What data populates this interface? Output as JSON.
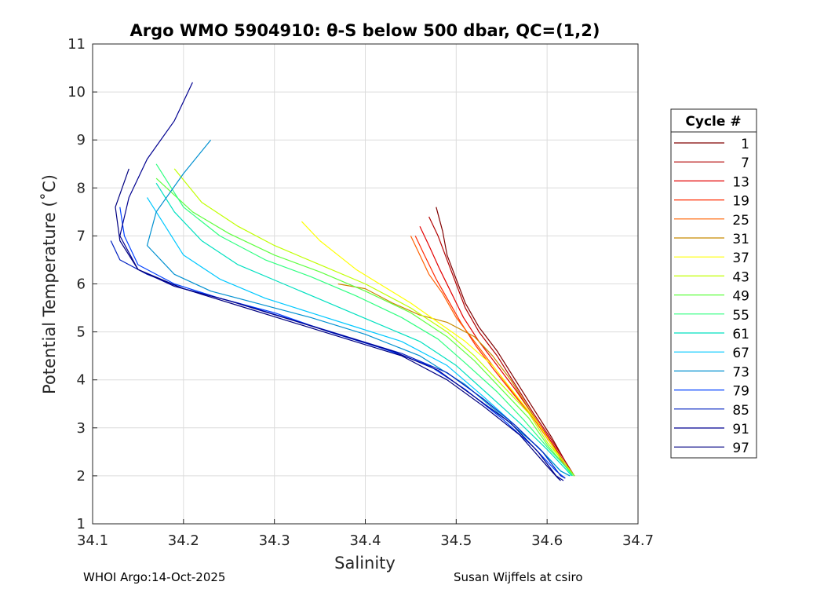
{
  "chart_data": {
    "type": "line",
    "title": "Argo WMO 5904910: θ-S below 500 dbar,  QC=(1,2)",
    "xlabel": "Salinity",
    "ylabel": "Potential Temperature (˚C)",
    "xlim": [
      34.1,
      34.7
    ],
    "ylim": [
      1,
      11
    ],
    "xticks": [
      "34.1",
      "34.2",
      "34.3",
      "34.4",
      "34.5",
      "34.6",
      "34.7"
    ],
    "yticks": [
      "1",
      "2",
      "3",
      "4",
      "5",
      "6",
      "7",
      "8",
      "9",
      "10",
      "11"
    ],
    "grid": true,
    "legend": {
      "title": "Cycle #",
      "placement": "outside-right",
      "entries": [
        "1",
        "7",
        "13",
        "19",
        "25",
        "31",
        "37",
        "43",
        "49",
        "55",
        "61",
        "67",
        "73",
        "79",
        "85",
        "91",
        "97"
      ],
      "colors": [
        "#800000",
        "#b20000",
        "#e30000",
        "#ff2a00",
        "#ff6000",
        "#c88a00",
        "#ffff00",
        "#c0ff00",
        "#60ff40",
        "#30ff80",
        "#00e0c0",
        "#00c8ff",
        "#0090d0",
        "#0040ff",
        "#0020c0",
        "#000090",
        "#000080"
      ]
    },
    "series": [
      {
        "name": "1",
        "color": "#800000",
        "values": [
          [
            34.478,
            7.6
          ],
          [
            34.485,
            7.1
          ],
          [
            34.49,
            6.6
          ],
          [
            34.5,
            6.1
          ],
          [
            34.51,
            5.6
          ],
          [
            34.525,
            5.1
          ],
          [
            34.545,
            4.6
          ],
          [
            34.565,
            4.0
          ],
          [
            34.585,
            3.4
          ],
          [
            34.605,
            2.8
          ],
          [
            34.62,
            2.3
          ],
          [
            34.63,
            2.0
          ]
        ]
      },
      {
        "name": "7",
        "color": "#b20000",
        "values": [
          [
            34.47,
            7.4
          ],
          [
            34.48,
            7.0
          ],
          [
            34.49,
            6.5
          ],
          [
            34.5,
            6.0
          ],
          [
            34.51,
            5.5
          ],
          [
            34.525,
            5.0
          ],
          [
            34.545,
            4.5
          ],
          [
            34.565,
            3.9
          ],
          [
            34.585,
            3.3
          ],
          [
            34.605,
            2.75
          ],
          [
            34.62,
            2.3
          ],
          [
            34.63,
            2.0
          ]
        ]
      },
      {
        "name": "13",
        "color": "#e30000",
        "values": [
          [
            34.46,
            7.2
          ],
          [
            34.47,
            6.8
          ],
          [
            34.482,
            6.3
          ],
          [
            34.495,
            5.8
          ],
          [
            34.508,
            5.3
          ],
          [
            34.525,
            4.8
          ],
          [
            34.545,
            4.3
          ],
          [
            34.565,
            3.8
          ],
          [
            34.585,
            3.25
          ],
          [
            34.605,
            2.7
          ],
          [
            34.62,
            2.25
          ],
          [
            34.63,
            2.0
          ]
        ]
      },
      {
        "name": "19",
        "color": "#ff2a00",
        "values": [
          [
            34.455,
            7.0
          ],
          [
            34.465,
            6.6
          ],
          [
            34.478,
            6.1
          ],
          [
            34.49,
            5.7
          ],
          [
            34.505,
            5.2
          ],
          [
            34.522,
            4.7
          ],
          [
            34.542,
            4.2
          ],
          [
            34.563,
            3.7
          ],
          [
            34.585,
            3.2
          ],
          [
            34.605,
            2.65
          ],
          [
            34.62,
            2.2
          ],
          [
            34.63,
            2.0
          ]
        ]
      },
      {
        "name": "25",
        "color": "#ff6000",
        "values": [
          [
            34.45,
            7.0
          ],
          [
            34.46,
            6.6
          ],
          [
            34.47,
            6.2
          ],
          [
            34.485,
            5.8
          ],
          [
            34.5,
            5.3
          ],
          [
            34.52,
            4.8
          ],
          [
            34.54,
            4.3
          ],
          [
            34.56,
            3.8
          ],
          [
            34.583,
            3.25
          ],
          [
            34.603,
            2.7
          ],
          [
            34.618,
            2.25
          ],
          [
            34.63,
            2.0
          ]
        ]
      },
      {
        "name": "31",
        "color": "#c88a00",
        "values": [
          [
            34.37,
            6.0
          ],
          [
            34.4,
            5.9
          ],
          [
            34.43,
            5.6
          ],
          [
            34.46,
            5.35
          ],
          [
            34.49,
            5.2
          ],
          [
            34.52,
            4.9
          ],
          [
            34.54,
            4.5
          ],
          [
            34.56,
            4.0
          ],
          [
            34.58,
            3.4
          ],
          [
            34.6,
            2.8
          ],
          [
            34.62,
            2.25
          ],
          [
            34.63,
            2.0
          ]
        ]
      },
      {
        "name": "37",
        "color": "#ffff00",
        "values": [
          [
            34.33,
            7.3
          ],
          [
            34.35,
            6.9
          ],
          [
            34.37,
            6.6
          ],
          [
            34.39,
            6.3
          ],
          [
            34.42,
            5.95
          ],
          [
            34.45,
            5.6
          ],
          [
            34.48,
            5.2
          ],
          [
            34.51,
            4.8
          ],
          [
            34.54,
            4.3
          ],
          [
            34.565,
            3.7
          ],
          [
            34.59,
            3.1
          ],
          [
            34.61,
            2.5
          ],
          [
            34.63,
            2.0
          ]
        ]
      },
      {
        "name": "43",
        "color": "#c0ff00",
        "values": [
          [
            34.19,
            8.4
          ],
          [
            34.22,
            7.7
          ],
          [
            34.26,
            7.2
          ],
          [
            34.3,
            6.8
          ],
          [
            34.35,
            6.4
          ],
          [
            34.4,
            6.0
          ],
          [
            34.45,
            5.5
          ],
          [
            34.49,
            5.0
          ],
          [
            34.52,
            4.5
          ],
          [
            34.55,
            3.9
          ],
          [
            34.58,
            3.3
          ],
          [
            34.6,
            2.7
          ],
          [
            34.62,
            2.25
          ],
          [
            34.63,
            2.0
          ]
        ]
      },
      {
        "name": "49",
        "color": "#60ff40",
        "values": [
          [
            34.17,
            8.2
          ],
          [
            34.21,
            7.5
          ],
          [
            34.25,
            7.05
          ],
          [
            34.3,
            6.6
          ],
          [
            34.35,
            6.25
          ],
          [
            34.4,
            5.85
          ],
          [
            34.45,
            5.4
          ],
          [
            34.49,
            4.9
          ],
          [
            34.52,
            4.4
          ],
          [
            34.55,
            3.8
          ],
          [
            34.58,
            3.2
          ],
          [
            34.6,
            2.65
          ],
          [
            34.62,
            2.2
          ],
          [
            34.63,
            2.0
          ]
        ]
      },
      {
        "name": "55",
        "color": "#30ff80",
        "values": [
          [
            34.17,
            8.5
          ],
          [
            34.2,
            7.6
          ],
          [
            34.24,
            7.0
          ],
          [
            34.29,
            6.5
          ],
          [
            34.34,
            6.15
          ],
          [
            34.39,
            5.75
          ],
          [
            34.44,
            5.3
          ],
          [
            34.48,
            4.85
          ],
          [
            34.51,
            4.35
          ],
          [
            34.545,
            3.75
          ],
          [
            34.575,
            3.15
          ],
          [
            34.6,
            2.6
          ],
          [
            34.62,
            2.2
          ],
          [
            34.628,
            2.0
          ]
        ]
      },
      {
        "name": "61",
        "color": "#00e0c0",
        "values": [
          [
            34.17,
            8.1
          ],
          [
            34.19,
            7.5
          ],
          [
            34.22,
            6.9
          ],
          [
            34.26,
            6.4
          ],
          [
            34.31,
            6.0
          ],
          [
            34.36,
            5.6
          ],
          [
            34.41,
            5.2
          ],
          [
            34.46,
            4.8
          ],
          [
            34.5,
            4.3
          ],
          [
            34.535,
            3.7
          ],
          [
            34.57,
            3.1
          ],
          [
            34.6,
            2.55
          ],
          [
            34.62,
            2.15
          ],
          [
            34.627,
            2.0
          ]
        ]
      },
      {
        "name": "67",
        "color": "#00c8ff",
        "values": [
          [
            34.16,
            7.8
          ],
          [
            34.18,
            7.2
          ],
          [
            34.2,
            6.6
          ],
          [
            34.24,
            6.1
          ],
          [
            34.29,
            5.7
          ],
          [
            34.34,
            5.4
          ],
          [
            34.39,
            5.1
          ],
          [
            34.44,
            4.8
          ],
          [
            34.49,
            4.3
          ],
          [
            34.53,
            3.65
          ],
          [
            34.565,
            3.05
          ],
          [
            34.595,
            2.5
          ],
          [
            34.615,
            2.1
          ],
          [
            34.625,
            2.0
          ]
        ]
      },
      {
        "name": "73",
        "color": "#0090d0",
        "values": [
          [
            34.23,
            9.0
          ],
          [
            34.2,
            8.3
          ],
          [
            34.17,
            7.5
          ],
          [
            34.16,
            6.8
          ],
          [
            34.19,
            6.2
          ],
          [
            34.23,
            5.85
          ],
          [
            34.28,
            5.6
          ],
          [
            34.34,
            5.3
          ],
          [
            34.4,
            4.95
          ],
          [
            34.46,
            4.5
          ],
          [
            34.51,
            3.9
          ],
          [
            34.55,
            3.25
          ],
          [
            34.59,
            2.6
          ],
          [
            34.615,
            2.1
          ],
          [
            34.625,
            2.0
          ]
        ]
      },
      {
        "name": "79",
        "color": "#0040ff",
        "values": [
          [
            34.13,
            7.6
          ],
          [
            34.135,
            7.0
          ],
          [
            34.15,
            6.4
          ],
          [
            34.19,
            6.0
          ],
          [
            34.24,
            5.7
          ],
          [
            34.3,
            5.4
          ],
          [
            34.36,
            5.0
          ],
          [
            34.42,
            4.65
          ],
          [
            34.47,
            4.3
          ],
          [
            34.51,
            3.8
          ],
          [
            34.55,
            3.2
          ],
          [
            34.585,
            2.6
          ],
          [
            34.61,
            2.1
          ],
          [
            34.62,
            1.95
          ]
        ]
      },
      {
        "name": "85",
        "color": "#0020c0",
        "values": [
          [
            34.12,
            6.9
          ],
          [
            34.13,
            6.5
          ],
          [
            34.16,
            6.2
          ],
          [
            34.2,
            5.9
          ],
          [
            34.26,
            5.6
          ],
          [
            34.32,
            5.25
          ],
          [
            34.38,
            4.9
          ],
          [
            34.44,
            4.55
          ],
          [
            34.49,
            4.15
          ],
          [
            34.53,
            3.6
          ],
          [
            34.565,
            3.05
          ],
          [
            34.595,
            2.5
          ],
          [
            34.615,
            2.0
          ],
          [
            34.62,
            1.95
          ]
        ]
      },
      {
        "name": "91",
        "color": "#000090",
        "values": [
          [
            34.21,
            10.2
          ],
          [
            34.19,
            9.4
          ],
          [
            34.16,
            8.6
          ],
          [
            34.14,
            7.8
          ],
          [
            34.13,
            7.0
          ],
          [
            34.15,
            6.3
          ],
          [
            34.19,
            5.95
          ],
          [
            34.25,
            5.65
          ],
          [
            34.31,
            5.3
          ],
          [
            34.37,
            4.95
          ],
          [
            34.43,
            4.6
          ],
          [
            34.48,
            4.2
          ],
          [
            34.52,
            3.65
          ],
          [
            34.56,
            3.1
          ],
          [
            34.59,
            2.5
          ],
          [
            34.61,
            2.0
          ],
          [
            34.618,
            1.9
          ]
        ]
      },
      {
        "name": "97",
        "color": "#000080",
        "values": [
          [
            34.14,
            8.4
          ],
          [
            34.125,
            7.6
          ],
          [
            34.13,
            6.9
          ],
          [
            34.15,
            6.3
          ],
          [
            34.2,
            5.9
          ],
          [
            34.26,
            5.55
          ],
          [
            34.32,
            5.2
          ],
          [
            34.38,
            4.85
          ],
          [
            34.44,
            4.5
          ],
          [
            34.49,
            4.0
          ],
          [
            34.53,
            3.45
          ],
          [
            34.57,
            2.85
          ],
          [
            34.6,
            2.2
          ],
          [
            34.612,
            1.95
          ],
          [
            34.615,
            1.9
          ]
        ]
      }
    ]
  },
  "footer": {
    "left": "WHOI Argo:14-Oct-2025",
    "right": "Susan Wijffels at csiro"
  }
}
